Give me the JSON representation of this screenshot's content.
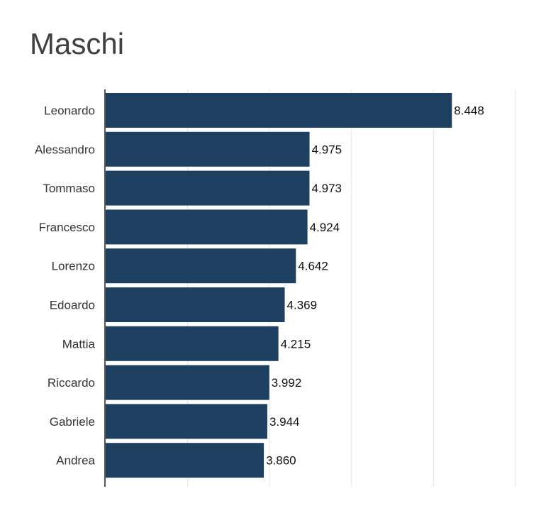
{
  "chart_data": {
    "type": "bar",
    "orientation": "horizontal",
    "title": "Maschi",
    "categories": [
      "Leonardo",
      "Alessandro",
      "Tommaso",
      "Francesco",
      "Lorenzo",
      "Edoardo",
      "Mattia",
      "Riccardo",
      "Gabriele",
      "Andrea"
    ],
    "values": [
      8448,
      4975,
      4973,
      4924,
      4642,
      4369,
      4215,
      3992,
      3944,
      3860
    ],
    "value_labels": [
      "8.448",
      "4.975",
      "4.973",
      "4.924",
      "4.642",
      "4.369",
      "4.215",
      "3.992",
      "3.944",
      "3.860"
    ],
    "xlim": [
      0,
      10000
    ],
    "grid": true,
    "bar_color": "#1d4060",
    "grid_color": "#e6e6e6",
    "axis_color": "#555555"
  }
}
